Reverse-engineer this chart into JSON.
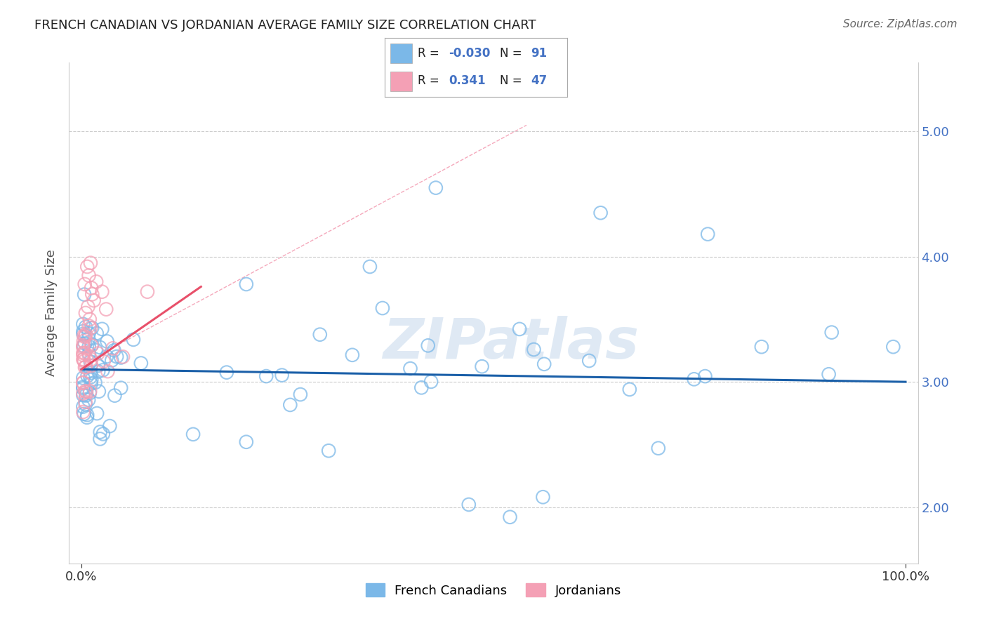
{
  "title": "FRENCH CANADIAN VS JORDANIAN AVERAGE FAMILY SIZE CORRELATION CHART",
  "source": "Source: ZipAtlas.com",
  "ylabel": "Average Family Size",
  "yticks": [
    2.0,
    3.0,
    4.0,
    5.0
  ],
  "blue_color": "#7bb8e8",
  "pink_color": "#f4a0b5",
  "blue_line_color": "#1a5fa8",
  "pink_line_color": "#e8506a",
  "pink_dash_color": "#f0a0b0",
  "watermark": "ZIPatlas",
  "background_color": "#ffffff",
  "grid_color": "#cccccc",
  "legend_text_color": "#4472c4",
  "title_color": "#222222",
  "source_color": "#666666"
}
